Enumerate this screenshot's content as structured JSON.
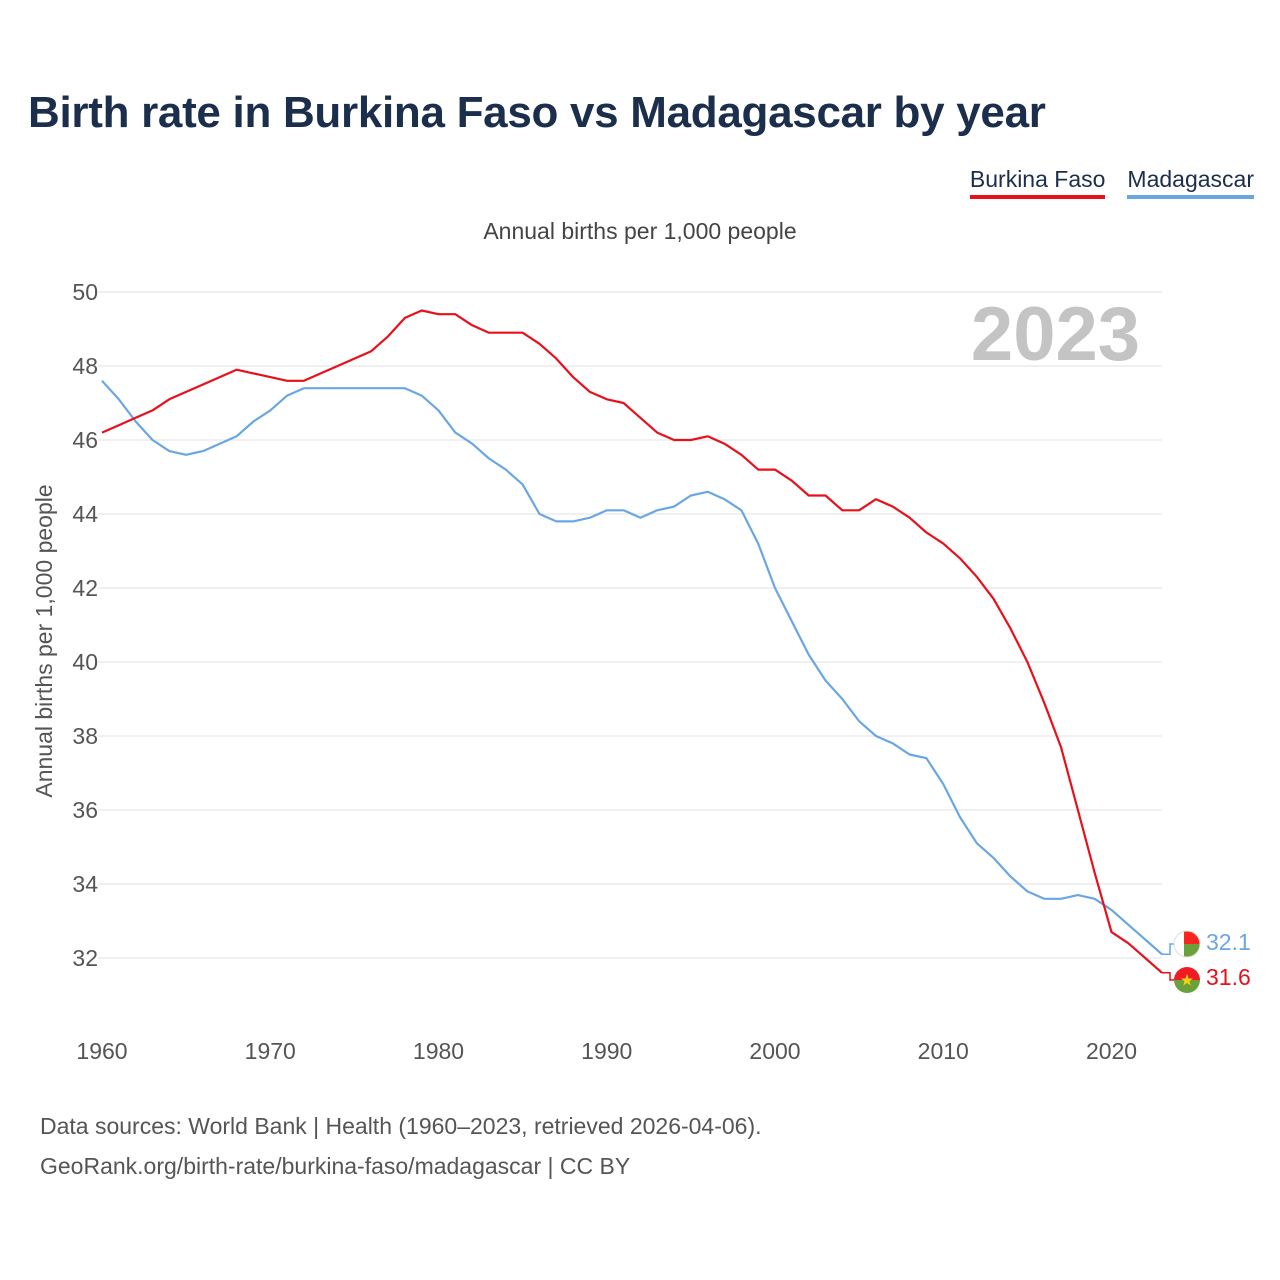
{
  "title": "Birth rate in Burkina Faso vs Madagascar by year",
  "subtitle": "Annual births per 1,000 people",
  "legend": [
    "Burkina Faso",
    "Madagascar"
  ],
  "year_watermark": "2023",
  "footer": {
    "line1": "Data sources: World Bank | Health (1960–2023, retrieved 2026-04-06).",
    "line2": "GeoRank.org/birth-rate/burkina-faso/madagascar | CC BY"
  },
  "colors": {
    "burkina_faso": "#e8101a",
    "madagascar": "#6aa7e2",
    "title": "#1b2e4b"
  },
  "chart_data": {
    "type": "line",
    "title": "Birth rate in Burkina Faso vs Madagascar by year",
    "xlabel": "",
    "ylabel": "Annual births per 1,000 people",
    "xlim": [
      1960,
      2023
    ],
    "ylim": [
      30.5,
      50
    ],
    "x_ticks": [
      1960,
      1970,
      1980,
      1990,
      2000,
      2010,
      2020
    ],
    "y_ticks": [
      32,
      34,
      36,
      38,
      40,
      42,
      44,
      46,
      48,
      50
    ],
    "grid": true,
    "legend_position": "top-right",
    "x": [
      1960,
      1961,
      1962,
      1963,
      1964,
      1965,
      1966,
      1967,
      1968,
      1969,
      1970,
      1971,
      1972,
      1973,
      1974,
      1975,
      1976,
      1977,
      1978,
      1979,
      1980,
      1981,
      1982,
      1983,
      1984,
      1985,
      1986,
      1987,
      1988,
      1989,
      1990,
      1991,
      1992,
      1993,
      1994,
      1995,
      1996,
      1997,
      1998,
      1999,
      2000,
      2001,
      2002,
      2003,
      2004,
      2005,
      2006,
      2007,
      2008,
      2009,
      2010,
      2011,
      2012,
      2013,
      2014,
      2015,
      2016,
      2017,
      2018,
      2019,
      2020,
      2021,
      2022,
      2023
    ],
    "series": [
      {
        "name": "Burkina Faso",
        "color": "#e8101a",
        "end_label": "31.6",
        "values": [
          46.2,
          46.4,
          46.6,
          46.8,
          47.1,
          47.3,
          47.5,
          47.7,
          47.9,
          47.8,
          47.7,
          47.6,
          47.6,
          47.8,
          48.0,
          48.2,
          48.4,
          48.8,
          49.3,
          49.5,
          49.4,
          49.4,
          49.1,
          48.9,
          48.9,
          48.9,
          48.6,
          48.2,
          47.7,
          47.3,
          47.1,
          47.0,
          46.6,
          46.2,
          46.0,
          46.0,
          46.1,
          45.9,
          45.6,
          45.2,
          45.2,
          44.9,
          44.5,
          44.5,
          44.1,
          44.1,
          44.4,
          44.2,
          43.9,
          43.5,
          43.2,
          42.8,
          42.3,
          41.7,
          40.9,
          40.0,
          38.9,
          37.7,
          36.0,
          34.3,
          32.7,
          32.4,
          32.0,
          31.6
        ]
      },
      {
        "name": "Madagascar",
        "color": "#6aa7e2",
        "end_label": "32.1",
        "values": [
          47.6,
          47.1,
          46.5,
          46.0,
          45.7,
          45.6,
          45.7,
          45.9,
          46.1,
          46.5,
          46.8,
          47.2,
          47.4,
          47.4,
          47.4,
          47.4,
          47.4,
          47.4,
          47.4,
          47.2,
          46.8,
          46.2,
          45.9,
          45.5,
          45.2,
          44.8,
          44.0,
          43.8,
          43.8,
          43.9,
          44.1,
          44.1,
          43.9,
          44.1,
          44.2,
          44.5,
          44.6,
          44.4,
          44.1,
          43.2,
          42.0,
          41.1,
          40.2,
          39.5,
          39.0,
          38.4,
          38.0,
          37.8,
          37.5,
          37.4,
          36.7,
          35.8,
          35.1,
          34.7,
          34.2,
          33.8,
          33.6,
          33.6,
          33.7,
          33.6,
          33.3,
          32.9,
          32.5,
          32.1
        ]
      }
    ]
  }
}
